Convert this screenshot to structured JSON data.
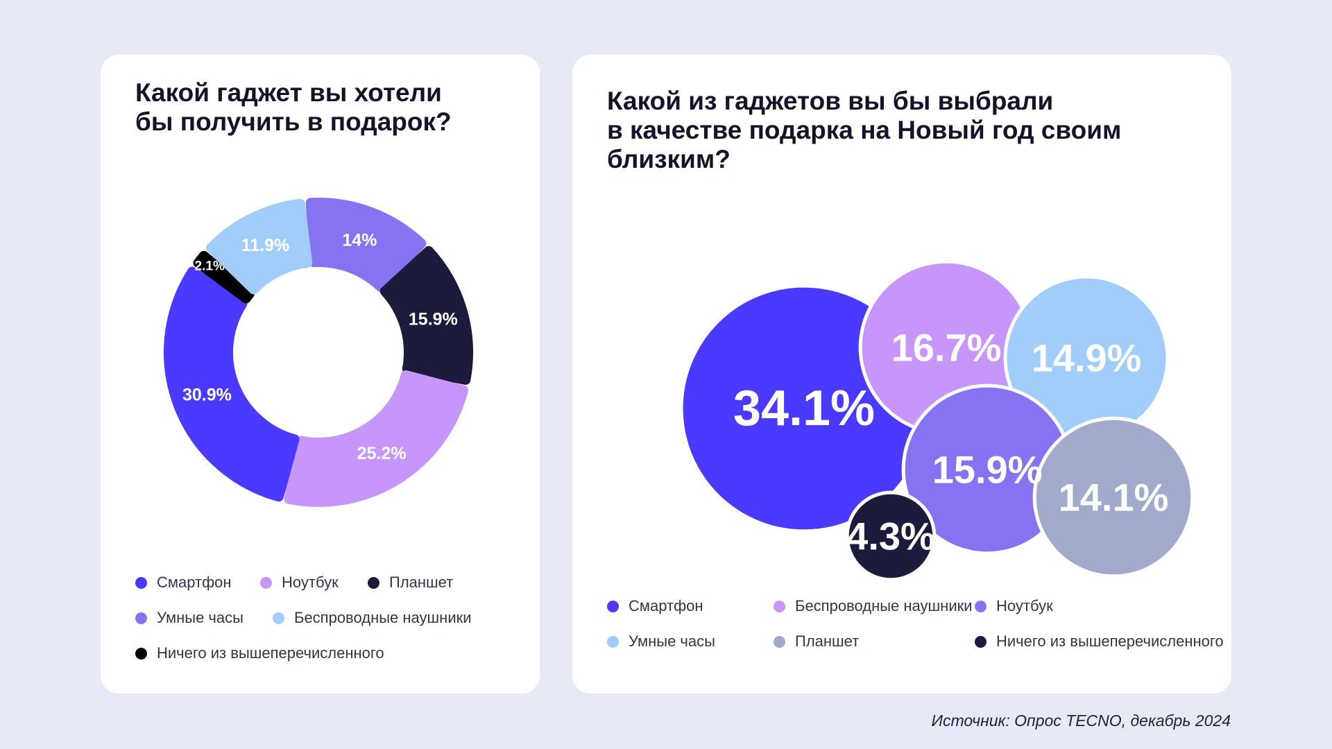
{
  "left_card": {
    "title": "Какой гаджет вы хотели\nбы получить в подарок?",
    "legend": [
      {
        "label": "Смартфон",
        "color": "#4a3aff"
      },
      {
        "label": "Ноутбук",
        "color": "#c796fa"
      },
      {
        "label": "Планшет",
        "color": "#1d1b3b"
      },
      {
        "label": "Умные часы",
        "color": "#8673f2"
      },
      {
        "label": "Беспроводные наушники",
        "color": "#a0cdfa"
      },
      {
        "label": "Ничего из вышеперечисленного",
        "color": "#000000"
      }
    ]
  },
  "right_card": {
    "title": "Какой из гаджетов вы бы выбрали\nв качестве подарка на Новый год своим\nблизким?",
    "legend": [
      {
        "label": "Смартфон",
        "color": "#4a3aff"
      },
      {
        "label": "Беспроводные наушники",
        "color": "#c796fa"
      },
      {
        "label": "Ноутбук",
        "color": "#8673f2"
      },
      {
        "label": "Умные часы",
        "color": "#a0cdfa"
      },
      {
        "label": "Планшет",
        "color": "#a2aacb"
      },
      {
        "label": "Ничего из вышеперечисленного",
        "color": "#1d1b3b"
      }
    ]
  },
  "source": "Источник: Опрос TECNO, декабрь 2024",
  "chart_data": [
    {
      "type": "pie",
      "variant": "donut",
      "title": "Какой гаджет вы хотели бы получить в подарок?",
      "unit": "%",
      "slices": [
        {
          "label": "Умные часы",
          "value": 14.0,
          "display": "14%",
          "color": "#8673f2"
        },
        {
          "label": "Планшет",
          "value": 15.9,
          "display": "15.9%",
          "color": "#1d1b3b"
        },
        {
          "label": "Ноутбук",
          "value": 25.2,
          "display": "25.2%",
          "color": "#c796fa"
        },
        {
          "label": "Смартфон",
          "value": 30.9,
          "display": "30.9%",
          "color": "#4a3aff"
        },
        {
          "label": "Ничего из вышеперечисленного",
          "value": 2.1,
          "display": "2.1%",
          "color": "#000000"
        },
        {
          "label": "Беспроводные наушники",
          "value": 11.9,
          "display": "11.9%",
          "color": "#a0cdfa"
        }
      ]
    },
    {
      "type": "bubble",
      "title": "Какой из гаджетов вы бы выбрали в качестве подарка на Новый год своим близким?",
      "unit": "%",
      "bubbles": [
        {
          "label": "Смартфон",
          "value": 34.1,
          "display": "34.1%",
          "color": "#4a3aff"
        },
        {
          "label": "Беспроводные наушники",
          "value": 16.7,
          "display": "16.7%",
          "color": "#c796fa"
        },
        {
          "label": "Умные часы",
          "value": 14.9,
          "display": "14.9%",
          "color": "#a0cdfa"
        },
        {
          "label": "Ноутбук",
          "value": 15.9,
          "display": "15.9%",
          "color": "#8673f2"
        },
        {
          "label": "Планшет",
          "value": 14.1,
          "display": "14.1%",
          "color": "#a2aacb"
        },
        {
          "label": "Ничего из вышеперечисленного",
          "value": 4.3,
          "display": "4.3%",
          "color": "#1d1b3b"
        }
      ]
    }
  ]
}
